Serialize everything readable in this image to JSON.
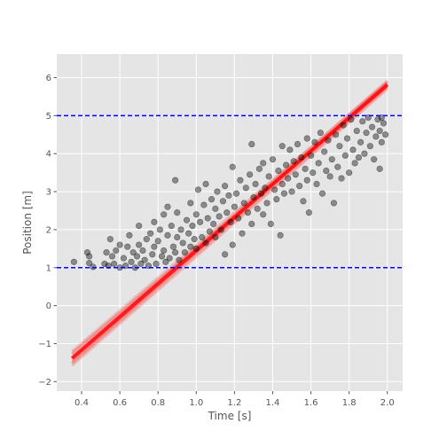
{
  "chart_data": {
    "type": "scatter",
    "title": "",
    "xlabel": "Time [s]",
    "ylabel": "Position [m]",
    "xlim": [
      0.27,
      2.08
    ],
    "ylim": [
      -2.25,
      6.62
    ],
    "xticks": [
      0.4,
      0.6,
      0.8,
      1.0,
      1.2,
      1.4,
      1.6,
      1.8,
      2.0
    ],
    "xtick_labels": [
      "0.4",
      "0.6",
      "0.8",
      "1.0",
      "1.2",
      "1.4",
      "1.6",
      "1.8",
      "2.0"
    ],
    "yticks": [
      -2,
      -1,
      0,
      1,
      2,
      3,
      4,
      5,
      6
    ],
    "ytick_labels": [
      "−2",
      "−1",
      "0",
      "1",
      "2",
      "3",
      "4",
      "5",
      "6"
    ],
    "grid": true,
    "background": "#e5e5e5",
    "reference_lines": [
      {
        "y": 1.0,
        "color": "#0000ff",
        "style": "dashed"
      },
      {
        "y": 5.0,
        "color": "#0000ff",
        "style": "dashed"
      }
    ],
    "fit_band": {
      "color": "#ff0000",
      "x_range": [
        0.35,
        2.0
      ],
      "lines": [
        {
          "y_start": -1.2,
          "y_end": 5.9
        },
        {
          "y_start": -1.28,
          "y_end": 5.86
        },
        {
          "y_start": -1.34,
          "y_end": 5.82
        },
        {
          "y_start": -1.4,
          "y_end": 5.8
        },
        {
          "y_start": -1.46,
          "y_end": 5.77
        },
        {
          "y_start": -1.52,
          "y_end": 5.74
        },
        {
          "y_start": -1.58,
          "y_end": 5.7
        },
        {
          "y_start": -1.25,
          "y_end": 5.78
        },
        {
          "y_start": -1.5,
          "y_end": 5.86
        },
        {
          "y_start": -1.37,
          "y_end": 5.92
        }
      ]
    },
    "series": [
      {
        "marker_color": "#000000",
        "points": [
          [
            0.36,
            1.15
          ],
          [
            0.43,
            1.4
          ],
          [
            0.44,
            1.12
          ],
          [
            0.46,
            1.02
          ],
          [
            0.44,
            1.3
          ],
          [
            0.52,
            1.1
          ],
          [
            0.53,
            1.4
          ],
          [
            0.54,
            1.05
          ],
          [
            0.55,
            1.75
          ],
          [
            0.56,
            1.3
          ],
          [
            0.57,
            1.1
          ],
          [
            0.58,
            1.45
          ],
          [
            0.6,
            1.0
          ],
          [
            0.6,
            1.6
          ],
          [
            0.62,
            1.25
          ],
          [
            0.63,
            1.05
          ],
          [
            0.64,
            1.55
          ],
          [
            0.65,
            1.85
          ],
          [
            0.66,
            1.15
          ],
          [
            0.67,
            1.4
          ],
          [
            0.68,
            1.0
          ],
          [
            0.69,
            1.3
          ],
          [
            0.7,
            2.1
          ],
          [
            0.7,
            1.6
          ],
          [
            0.71,
            1.1
          ],
          [
            0.72,
            1.45
          ],
          [
            0.73,
            1.2
          ],
          [
            0.74,
            1.75
          ],
          [
            0.75,
            1.05
          ],
          [
            0.76,
            1.9
          ],
          [
            0.77,
            1.35
          ],
          [
            0.78,
            2.2
          ],
          [
            0.78,
            1.55
          ],
          [
            0.79,
            1.1
          ],
          [
            0.8,
            1.7
          ],
          [
            0.81,
            2.0
          ],
          [
            0.82,
            1.3
          ],
          [
            0.83,
            1.45
          ],
          [
            0.83,
            2.4
          ],
          [
            0.84,
            1.15
          ],
          [
            0.85,
            1.85
          ],
          [
            0.85,
            2.6
          ],
          [
            0.86,
            1.25
          ],
          [
            0.87,
            2.1
          ],
          [
            0.88,
            1.55
          ],
          [
            0.89,
            3.3
          ],
          [
            0.89,
            1.4
          ],
          [
            0.9,
            2.45
          ],
          [
            0.9,
            1.8
          ],
          [
            0.91,
            1.2
          ],
          [
            0.92,
            2.0
          ],
          [
            0.93,
            1.65
          ],
          [
            0.94,
            1.4
          ],
          [
            0.95,
            2.25
          ],
          [
            0.96,
            1.9
          ],
          [
            0.97,
            1.55
          ],
          [
            0.97,
            2.7
          ],
          [
            0.98,
            2.1
          ],
          [
            0.99,
            1.75
          ],
          [
            1.0,
            2.4
          ],
          [
            1.0,
            1.5
          ],
          [
            1.01,
            3.05
          ],
          [
            1.02,
            2.2
          ],
          [
            1.03,
            1.8
          ],
          [
            1.04,
            2.65
          ],
          [
            1.05,
            1.65
          ],
          [
            1.05,
            3.2
          ],
          [
            1.06,
            2.3
          ],
          [
            1.07,
            1.95
          ],
          [
            1.08,
            2.8
          ],
          [
            1.09,
            2.15
          ],
          [
            1.1,
            2.55
          ],
          [
            1.1,
            1.8
          ],
          [
            1.11,
            3.0
          ],
          [
            1.12,
            2.35
          ],
          [
            1.13,
            2.0
          ],
          [
            1.14,
            2.75
          ],
          [
            1.15,
            3.15
          ],
          [
            1.15,
            1.35
          ],
          [
            1.16,
            2.45
          ],
          [
            1.17,
            2.9
          ],
          [
            1.18,
            2.2
          ],
          [
            1.19,
            3.65
          ],
          [
            1.19,
            1.6
          ],
          [
            1.2,
            2.6
          ],
          [
            1.21,
            2.95
          ],
          [
            1.22,
            2.3
          ],
          [
            1.23,
            3.3
          ],
          [
            1.24,
            1.9
          ],
          [
            1.25,
            2.7
          ],
          [
            1.26,
            3.1
          ],
          [
            1.27,
            2.45
          ],
          [
            1.28,
            3.45
          ],
          [
            1.29,
            4.25
          ],
          [
            1.29,
            2.15
          ],
          [
            1.3,
            2.85
          ],
          [
            1.31,
            3.2
          ],
          [
            1.32,
            2.55
          ],
          [
            1.33,
            3.6
          ],
          [
            1.34,
            2.95
          ],
          [
            1.35,
            2.4
          ],
          [
            1.35,
            3.75
          ],
          [
            1.36,
            3.1
          ],
          [
            1.37,
            2.7
          ],
          [
            1.38,
            3.4
          ],
          [
            1.39,
            2.15
          ],
          [
            1.4,
            3.85
          ],
          [
            1.41,
            3.05
          ],
          [
            1.42,
            2.8
          ],
          [
            1.43,
            3.55
          ],
          [
            1.44,
            1.85
          ],
          [
            1.45,
            4.2
          ],
          [
            1.45,
            3.2
          ],
          [
            1.46,
            2.95
          ],
          [
            1.47,
            3.7
          ],
          [
            1.48,
            3.35
          ],
          [
            1.49,
            4.1
          ],
          [
            1.5,
            3.0
          ],
          [
            1.51,
            3.8
          ],
          [
            1.52,
            3.45
          ],
          [
            1.53,
            4.25
          ],
          [
            1.54,
            3.15
          ],
          [
            1.55,
            3.9
          ],
          [
            1.56,
            2.75
          ],
          [
            1.57,
            3.6
          ],
          [
            1.58,
            4.4
          ],
          [
            1.58,
            3.3
          ],
          [
            1.59,
            2.45
          ],
          [
            1.6,
            3.95
          ],
          [
            1.61,
            3.5
          ],
          [
            1.62,
            4.3
          ],
          [
            1.63,
            3.2
          ],
          [
            1.64,
            3.75
          ],
          [
            1.65,
            4.55
          ],
          [
            1.66,
            2.95
          ],
          [
            1.67,
            4.05
          ],
          [
            1.68,
            3.55
          ],
          [
            1.69,
            4.35
          ],
          [
            1.7,
            3.4
          ],
          [
            1.71,
            3.85
          ],
          [
            1.72,
            2.7
          ],
          [
            1.73,
            4.5
          ],
          [
            1.74,
            3.65
          ],
          [
            1.75,
            4.2
          ],
          [
            1.76,
            3.35
          ],
          [
            1.77,
            4.75
          ],
          [
            1.78,
            3.95
          ],
          [
            1.79,
            4.4
          ],
          [
            1.8,
            3.5
          ],
          [
            1.81,
            4.9
          ],
          [
            1.82,
            4.1
          ],
          [
            1.83,
            3.75
          ],
          [
            1.84,
            4.6
          ],
          [
            1.85,
            3.9
          ],
          [
            1.86,
            4.3
          ],
          [
            1.87,
            4.85
          ],
          [
            1.88,
            4.0
          ],
          [
            1.89,
            4.55
          ],
          [
            1.9,
            4.95
          ],
          [
            1.91,
            4.2
          ],
          [
            1.92,
            4.7
          ],
          [
            1.93,
            3.85
          ],
          [
            1.94,
            4.45
          ],
          [
            1.95,
            4.9
          ],
          [
            1.96,
            4.6
          ],
          [
            1.96,
            3.6
          ],
          [
            1.97,
            4.3
          ],
          [
            1.98,
            4.8
          ],
          [
            1.99,
            4.5
          ],
          [
            1.97,
            4.95
          ]
        ]
      }
    ]
  }
}
